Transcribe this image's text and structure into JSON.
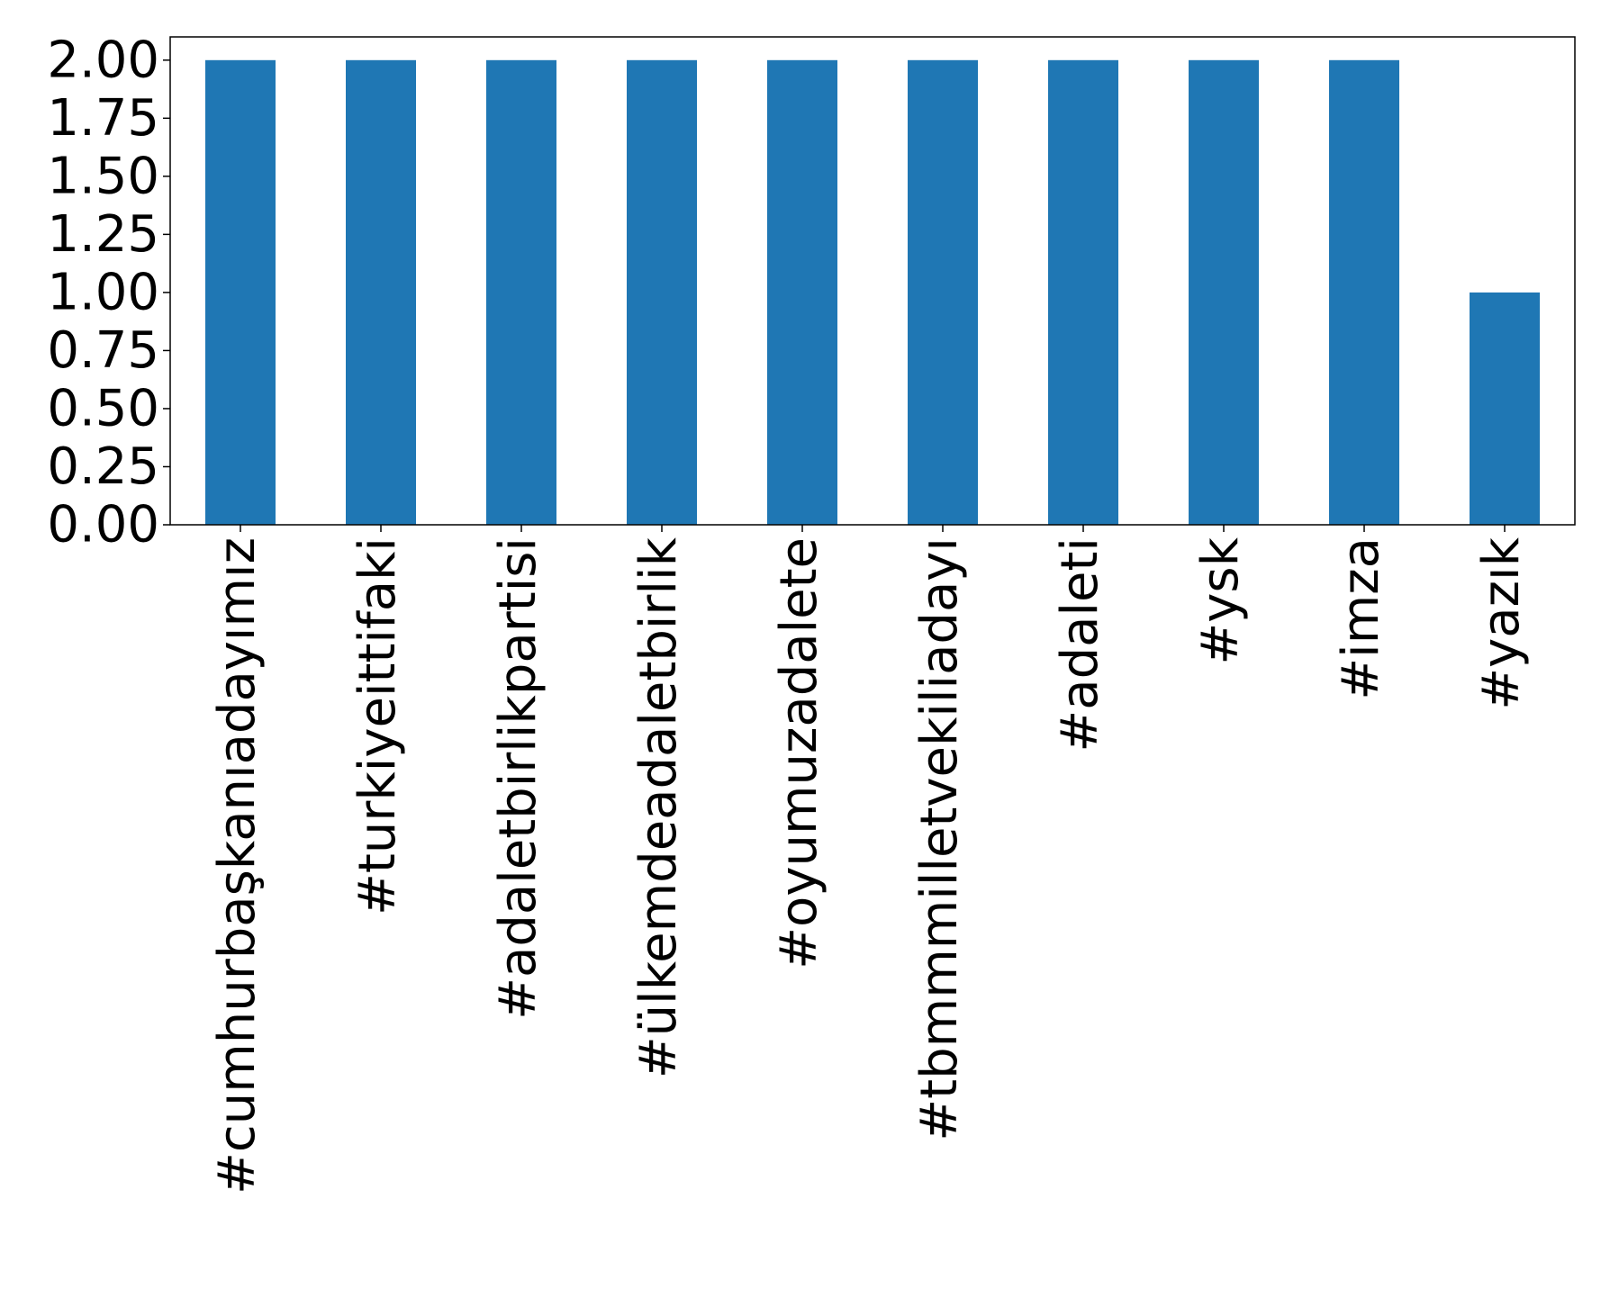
{
  "chart_data": {
    "type": "bar",
    "categories": [
      "#cumhurbaşkanıadayımız",
      "#turkiyeittifaki",
      "#adaletbirlikpartisi",
      "#ülkemdeadaletbirlik",
      "#oyumuzadalete",
      "#tbmmmilletvekiliadayı",
      "#adaleti",
      "#ysk",
      "#imza",
      "#yazık"
    ],
    "values": [
      2,
      2,
      2,
      2,
      2,
      2,
      2,
      2,
      2,
      1
    ],
    "color": "#1f77b4",
    "ylim": [
      0,
      2.1
    ],
    "yticks": [
      {
        "value": 0,
        "label": "0.00"
      },
      {
        "value": 0.25,
        "label": "0.25"
      },
      {
        "value": 0.5,
        "label": "0.50"
      },
      {
        "value": 0.75,
        "label": "0.75"
      },
      {
        "value": 1,
        "label": "1.00"
      },
      {
        "value": 1.25,
        "label": "1.25"
      },
      {
        "value": 1.5,
        "label": "1.50"
      },
      {
        "value": 1.75,
        "label": "1.75"
      },
      {
        "value": 2,
        "label": "2.00"
      }
    ],
    "grid": false
  }
}
